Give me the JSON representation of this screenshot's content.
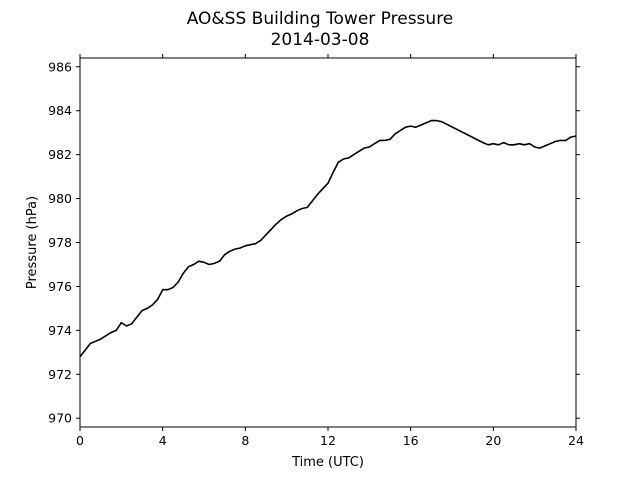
{
  "chart_data": {
    "type": "line",
    "title": "AO&SS Building Tower Pressure",
    "subtitle": "2014-03-08",
    "xlabel": "Time (UTC)",
    "ylabel": "Pressure (hPa)",
    "xlim": [
      0,
      24
    ],
    "ylim": [
      969.6,
      986.4
    ],
    "xticks": [
      0,
      4,
      8,
      12,
      16,
      20,
      24
    ],
    "yticks": [
      970,
      972,
      974,
      976,
      978,
      980,
      982,
      984,
      986
    ],
    "grid": false,
    "line_color": "#000000",
    "series": [
      {
        "x": [
          0,
          0.25,
          0.5,
          0.75,
          1.0,
          1.25,
          1.5,
          1.75,
          2.0,
          2.25,
          2.5,
          2.75,
          3.0,
          3.25,
          3.5,
          3.75,
          4.0,
          4.25,
          4.5,
          4.75,
          5.0,
          5.25,
          5.5,
          5.75,
          6.0,
          6.25,
          6.5,
          6.75,
          7.0,
          7.25,
          7.5,
          7.75,
          8.0,
          8.25,
          8.5,
          8.75,
          9.0,
          9.25,
          9.5,
          9.75,
          10.0,
          10.25,
          10.5,
          10.75,
          11.0,
          11.25,
          11.5,
          11.75,
          12.0,
          12.25,
          12.5,
          12.75,
          13.0,
          13.25,
          13.5,
          13.75,
          14.0,
          14.25,
          14.5,
          14.75,
          15.0,
          15.25,
          15.5,
          15.75,
          16.0,
          16.25,
          16.5,
          16.75,
          17.0,
          17.25,
          17.5,
          19.5,
          19.75,
          20.0,
          20.25,
          20.5,
          20.75,
          21.0,
          21.25,
          21.5,
          21.75,
          22.0,
          22.25,
          22.5,
          22.75,
          23.0,
          23.25,
          23.5,
          23.75,
          24.0
        ],
        "y": [
          972.8,
          973.1,
          973.4,
          973.5,
          973.6,
          973.75,
          973.9,
          974.0,
          974.35,
          974.2,
          974.3,
          974.6,
          974.9,
          975.0,
          975.15,
          975.4,
          975.85,
          975.85,
          975.95,
          976.2,
          976.6,
          976.9,
          977.0,
          977.15,
          977.1,
          977.0,
          977.05,
          977.15,
          977.45,
          977.6,
          977.7,
          977.75,
          977.85,
          977.9,
          977.95,
          978.1,
          978.35,
          978.6,
          978.85,
          979.05,
          979.2,
          979.3,
          979.45,
          979.55,
          979.6,
          979.9,
          980.2,
          980.45,
          980.7,
          981.2,
          981.65,
          981.8,
          981.85,
          982.0,
          982.15,
          982.3,
          982.35,
          982.5,
          982.65,
          982.65,
          982.7,
          982.95,
          983.1,
          983.25,
          983.3,
          983.25,
          983.35,
          983.45,
          983.55,
          983.55,
          983.5,
          982.55,
          982.45,
          982.5,
          982.45,
          982.55,
          982.45,
          982.45,
          982.5,
          982.45,
          982.5,
          982.35,
          982.3,
          982.4,
          982.5,
          982.6,
          982.65,
          982.65,
          982.8,
          982.85
        ]
      }
    ]
  }
}
